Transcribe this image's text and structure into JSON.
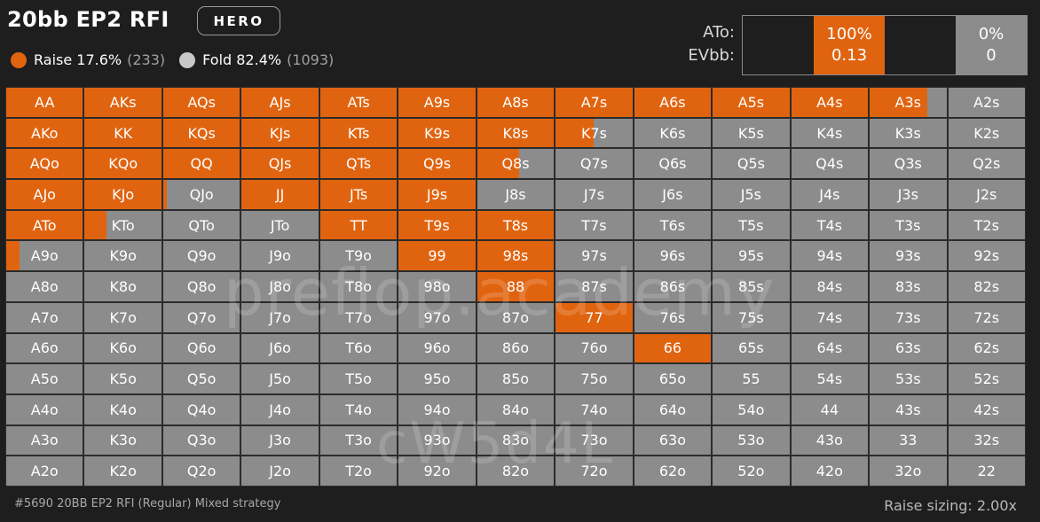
{
  "header": {
    "title": "20bb EP2 RFI",
    "hero_label": "HERO"
  },
  "legend": {
    "raise": {
      "label": "Raise 17.6%",
      "count": "(233)",
      "color": "#e06410"
    },
    "fold": {
      "label": "Fold 82.4%",
      "count": "(1093)",
      "color": "#8c8c8c"
    }
  },
  "detail": {
    "hand_label": "ATo:",
    "ev_label": "EVbb:",
    "raise_pct": "100%",
    "raise_ev": "0.13",
    "fold_pct": "0%",
    "fold_ev": "0"
  },
  "grid": {
    "rows": [
      [
        [
          "AA",
          1
        ],
        [
          "AKs",
          1
        ],
        [
          "AQs",
          1
        ],
        [
          "AJs",
          1
        ],
        [
          "ATs",
          1
        ],
        [
          "A9s",
          1
        ],
        [
          "A8s",
          1
        ],
        [
          "A7s",
          1
        ],
        [
          "A6s",
          1
        ],
        [
          "A5s",
          1
        ],
        [
          "A4s",
          1
        ],
        [
          "A3s",
          0.75
        ],
        [
          "A2s",
          0
        ]
      ],
      [
        [
          "AKo",
          1
        ],
        [
          "KK",
          1
        ],
        [
          "KQs",
          1
        ],
        [
          "KJs",
          1
        ],
        [
          "KTs",
          1
        ],
        [
          "K9s",
          1
        ],
        [
          "K8s",
          1
        ],
        [
          "K7s",
          0.5
        ],
        [
          "K6s",
          0
        ],
        [
          "K5s",
          0
        ],
        [
          "K4s",
          0
        ],
        [
          "K3s",
          0
        ],
        [
          "K2s",
          0
        ]
      ],
      [
        [
          "AQo",
          1
        ],
        [
          "KQo",
          1
        ],
        [
          "QQ",
          1
        ],
        [
          "QJs",
          1
        ],
        [
          "QTs",
          1
        ],
        [
          "Q9s",
          1
        ],
        [
          "Q8s",
          0.55
        ],
        [
          "Q7s",
          0
        ],
        [
          "Q6s",
          0
        ],
        [
          "Q5s",
          0
        ],
        [
          "Q4s",
          0
        ],
        [
          "Q3s",
          0
        ],
        [
          "Q2s",
          0
        ]
      ],
      [
        [
          "AJo",
          1
        ],
        [
          "KJo",
          1
        ],
        [
          "QJo",
          0.05
        ],
        [
          "JJ",
          1
        ],
        [
          "JTs",
          1
        ],
        [
          "J9s",
          1
        ],
        [
          "J8s",
          0
        ],
        [
          "J7s",
          0
        ],
        [
          "J6s",
          0
        ],
        [
          "J5s",
          0
        ],
        [
          "J4s",
          0
        ],
        [
          "J3s",
          0
        ],
        [
          "J2s",
          0
        ]
      ],
      [
        [
          "ATo",
          1
        ],
        [
          "KTo",
          0.28
        ],
        [
          "QTo",
          0
        ],
        [
          "JTo",
          0
        ],
        [
          "TT",
          1
        ],
        [
          "T9s",
          1
        ],
        [
          "T8s",
          1
        ],
        [
          "T7s",
          0
        ],
        [
          "T6s",
          0
        ],
        [
          "T5s",
          0
        ],
        [
          "T4s",
          0
        ],
        [
          "T3s",
          0
        ],
        [
          "T2s",
          0
        ]
      ],
      [
        [
          "A9o",
          0.17
        ],
        [
          "K9o",
          0
        ],
        [
          "Q9o",
          0
        ],
        [
          "J9o",
          0
        ],
        [
          "T9o",
          0
        ],
        [
          "99",
          1
        ],
        [
          "98s",
          1
        ],
        [
          "97s",
          0
        ],
        [
          "96s",
          0
        ],
        [
          "95s",
          0
        ],
        [
          "94s",
          0
        ],
        [
          "93s",
          0
        ],
        [
          "92s",
          0
        ]
      ],
      [
        [
          "A8o",
          0
        ],
        [
          "K8o",
          0
        ],
        [
          "Q8o",
          0
        ],
        [
          "J8o",
          0
        ],
        [
          "T8o",
          0
        ],
        [
          "98o",
          0
        ],
        [
          "88",
          1
        ],
        [
          "87s",
          0
        ],
        [
          "86s",
          0
        ],
        [
          "85s",
          0
        ],
        [
          "84s",
          0
        ],
        [
          "83s",
          0
        ],
        [
          "82s",
          0
        ]
      ],
      [
        [
          "A7o",
          0
        ],
        [
          "K7o",
          0
        ],
        [
          "Q7o",
          0
        ],
        [
          "J7o",
          0
        ],
        [
          "T7o",
          0
        ],
        [
          "97o",
          0
        ],
        [
          "87o",
          0
        ],
        [
          "77",
          1
        ],
        [
          "76s",
          0
        ],
        [
          "75s",
          0
        ],
        [
          "74s",
          0
        ],
        [
          "73s",
          0
        ],
        [
          "72s",
          0
        ]
      ],
      [
        [
          "A6o",
          0
        ],
        [
          "K6o",
          0
        ],
        [
          "Q6o",
          0
        ],
        [
          "J6o",
          0
        ],
        [
          "T6o",
          0
        ],
        [
          "96o",
          0
        ],
        [
          "86o",
          0
        ],
        [
          "76o",
          0
        ],
        [
          "66",
          1
        ],
        [
          "65s",
          0
        ],
        [
          "64s",
          0
        ],
        [
          "63s",
          0
        ],
        [
          "62s",
          0
        ]
      ],
      [
        [
          "A5o",
          0
        ],
        [
          "K5o",
          0
        ],
        [
          "Q5o",
          0
        ],
        [
          "J5o",
          0
        ],
        [
          "T5o",
          0
        ],
        [
          "95o",
          0
        ],
        [
          "85o",
          0
        ],
        [
          "75o",
          0
        ],
        [
          "65o",
          0
        ],
        [
          "55",
          0
        ],
        [
          "54s",
          0
        ],
        [
          "53s",
          0
        ],
        [
          "52s",
          0
        ]
      ],
      [
        [
          "A4o",
          0
        ],
        [
          "K4o",
          0
        ],
        [
          "Q4o",
          0
        ],
        [
          "J4o",
          0
        ],
        [
          "T4o",
          0
        ],
        [
          "94o",
          0
        ],
        [
          "84o",
          0
        ],
        [
          "74o",
          0
        ],
        [
          "64o",
          0
        ],
        [
          "54o",
          0
        ],
        [
          "44",
          0
        ],
        [
          "43s",
          0
        ],
        [
          "42s",
          0
        ]
      ],
      [
        [
          "A3o",
          0
        ],
        [
          "K3o",
          0
        ],
        [
          "Q3o",
          0
        ],
        [
          "J3o",
          0
        ],
        [
          "T3o",
          0
        ],
        [
          "93o",
          0
        ],
        [
          "83o",
          0
        ],
        [
          "73o",
          0
        ],
        [
          "63o",
          0
        ],
        [
          "53o",
          0
        ],
        [
          "43o",
          0
        ],
        [
          "33",
          0
        ],
        [
          "32s",
          0
        ]
      ],
      [
        [
          "A2o",
          0
        ],
        [
          "K2o",
          0
        ],
        [
          "Q2o",
          0
        ],
        [
          "J2o",
          0
        ],
        [
          "T2o",
          0
        ],
        [
          "92o",
          0
        ],
        [
          "82o",
          0
        ],
        [
          "72o",
          0
        ],
        [
          "62o",
          0
        ],
        [
          "52o",
          0
        ],
        [
          "42o",
          0
        ],
        [
          "32o",
          0
        ],
        [
          "22",
          0
        ]
      ]
    ]
  },
  "watermark": {
    "line1": "preflop.academy",
    "line2": "cW5d4L"
  },
  "footer": {
    "info": "#5690 20BB EP2 RFI (Regular) Mixed strategy",
    "sizing": "Raise sizing: 2.00x"
  }
}
